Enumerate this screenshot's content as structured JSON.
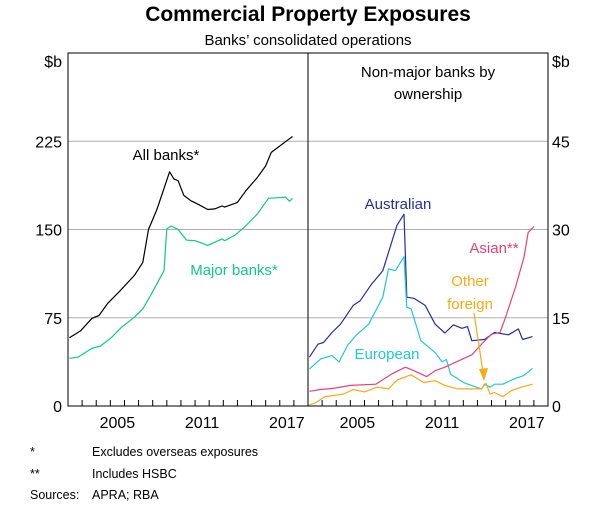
{
  "chart_data": [
    {
      "type": "line",
      "title": "Commercial Property Exposures",
      "subtitle": "Banks’ consolidated operations",
      "panel": "left",
      "ylabel": "$b",
      "ylim": [
        0,
        300
      ],
      "yticks": [
        0,
        75,
        150,
        225
      ],
      "xlim": [
        2002,
        2019
      ],
      "xticks": [
        2005,
        2011,
        2017
      ],
      "grid": true,
      "series": [
        {
          "name": "All banks*",
          "color": "#000000",
          "x": [
            2002.1,
            2002.9,
            2003.7,
            2004.2,
            2004.8,
            2005.7,
            2006.7,
            2007.3,
            2007.7,
            2008.3,
            2009.2,
            2009.5,
            2009.8,
            2010.2,
            2010.7,
            2011.2,
            2011.9,
            2012.4,
            2012.9,
            2013.1,
            2014.0,
            2014.6,
            2015.4,
            2016.0,
            2016.4,
            2017.0,
            2017.5,
            2017.9
          ],
          "y": [
            58,
            64,
            74.5,
            77,
            87,
            98,
            111,
            122,
            150,
            167,
            199,
            193,
            191.5,
            179,
            174.5,
            171.5,
            167,
            167.5,
            170,
            169,
            173,
            183,
            194,
            204,
            215.5,
            221,
            225.5,
            229
          ]
        },
        {
          "name": "Major banks*",
          "color": "#10c88a",
          "x": [
            2002.1,
            2002.7,
            2003.7,
            2004.3,
            2005.1,
            2005.8,
            2006.7,
            2007.3,
            2007.9,
            2008.8,
            2009.0,
            2009.3,
            2009.8,
            2010.4,
            2011.0,
            2011.9,
            2012.9,
            2013.1,
            2013.8,
            2014.5,
            2015.4,
            2016.2,
            2016.9,
            2017.4,
            2017.7,
            2017.9
          ],
          "y": [
            40.5,
            41.5,
            49,
            51,
            58.5,
            67,
            75.5,
            82.5,
            95,
            115,
            150.5,
            153,
            150,
            141,
            140.5,
            136.5,
            142,
            140.5,
            145,
            152,
            163,
            176.5,
            177,
            177.5,
            174,
            176.5
          ]
        }
      ]
    },
    {
      "type": "line",
      "panel": "right",
      "title": "Non-major banks by ownership",
      "ylabel": "$b",
      "ylim": [
        0,
        60
      ],
      "yticks": [
        0,
        15,
        30,
        45
      ],
      "xlim": [
        2002,
        2019
      ],
      "xticks": [
        2005,
        2011,
        2017
      ],
      "grid": true,
      "annotation": "Other foreign",
      "series": [
        {
          "name": "Australian",
          "color": "#2230a0",
          "x": [
            2002.1,
            2002.7,
            2003.1,
            2003.7,
            2004.3,
            2005.2,
            2005.7,
            2006.5,
            2007.3,
            2008.3,
            2008.8,
            2009.0,
            2009.5,
            2010.3,
            2011.0,
            2011.7,
            2012.3,
            2012.9,
            2013.3,
            2013.6,
            2014.5,
            2015.2,
            2016.2,
            2016.9,
            2017.2,
            2017.9
          ],
          "y": [
            8.3,
            10.5,
            10.8,
            12.5,
            13.9,
            17.1,
            17.9,
            20.7,
            23,
            30.7,
            32.6,
            18.5,
            18.3,
            17.1,
            13.9,
            12.4,
            13.8,
            13.2,
            13.5,
            11.1,
            11.3,
            12.5,
            12.1,
            13.1,
            11.3,
            11.8
          ]
        },
        {
          "name": "European",
          "color": "#22c8d2",
          "x": [
            2002.1,
            2002.9,
            2003.7,
            2004.2,
            2004.8,
            2005.4,
            2006.3,
            2007.3,
            2007.7,
            2008.2,
            2008.8,
            2009.0,
            2009.3,
            2010.0,
            2011.0,
            2011.5,
            2011.8,
            2012.1,
            2013.1,
            2014.3,
            2014.5,
            2014.9,
            2015.2,
            2015.8,
            2016.6,
            2017.3,
            2017.9
          ],
          "y": [
            6.3,
            8,
            8.6,
            7.5,
            10.3,
            12,
            13.9,
            18.5,
            23.3,
            23,
            25.4,
            16.8,
            16.5,
            11.1,
            9.1,
            7.5,
            7.9,
            5.4,
            3.9,
            2.9,
            3.7,
            3.2,
            3.7,
            3.7,
            4.6,
            5.2,
            6.4
          ]
        },
        {
          "name": "Asian**",
          "color": "#e2437c",
          "x": [
            2002.1,
            2002.9,
            2003.8,
            2005.0,
            2006.8,
            2007.9,
            2008.9,
            2009.5,
            2010.4,
            2011.0,
            2011.7,
            2012.5,
            2013.6,
            2014.4,
            2015.0,
            2015.6,
            2016.0,
            2016.7,
            2017.3,
            2017.6,
            2018.0
          ],
          "y": [
            2.5,
            2.8,
            3,
            3.5,
            3.7,
            5.4,
            6.6,
            6,
            5,
            6,
            6.6,
            7.5,
            8.7,
            10.8,
            12.2,
            12.5,
            15.1,
            20.2,
            25.3,
            29.5,
            30.5
          ]
        },
        {
          "name": "Other foreign",
          "color": "#f8aa14",
          "x": [
            2002.1,
            2002.5,
            2003.2,
            2004.5,
            2005.2,
            2006.0,
            2006.9,
            2007.7,
            2008.3,
            2009.3,
            2010.2,
            2011.0,
            2011.7,
            2012.6,
            2014.3,
            2014.6,
            2014.9,
            2015.2,
            2015.8,
            2016.4,
            2017.1,
            2017.9
          ],
          "y": [
            0.2,
            0.5,
            1.6,
            2,
            2.8,
            2.4,
            3.2,
            2.9,
            4.4,
            5.3,
            4,
            4.3,
            3.5,
            2.9,
            2.9,
            3.9,
            2,
            2.3,
            1.6,
            2.6,
            3.2,
            3.7
          ]
        }
      ]
    }
  ],
  "labels": {
    "title": "Commercial Property Exposures",
    "subtitle": "Banks’ consolidated operations",
    "unit_left": "$b",
    "unit_right": "$b",
    "left_ticks": [
      "0",
      "75",
      "150",
      "225"
    ],
    "right_ticks": [
      "0",
      "15",
      "30",
      "45"
    ],
    "x_ticks": [
      "2005",
      "2011",
      "2017"
    ],
    "panel_title_1": "Non-major banks by",
    "panel_title_2": "ownership",
    "all_banks": "All banks*",
    "major_banks": "Major banks*",
    "australian": "Australian",
    "european": "European",
    "asian": "Asian**",
    "other_1": "Other",
    "other_2": "foreign"
  },
  "footnotes": [
    {
      "mark": "*",
      "text": "Excludes overseas exposures"
    },
    {
      "mark": "**",
      "text": "Includes HSBC"
    },
    {
      "mark": "Sources:",
      "text": "APRA; RBA"
    }
  ]
}
